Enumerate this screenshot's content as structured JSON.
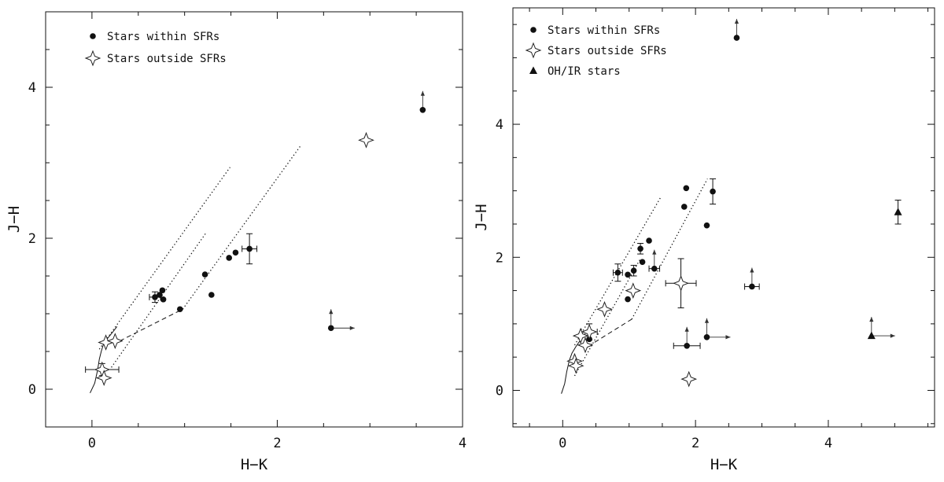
{
  "chart_data": [
    {
      "type": "scatter",
      "xlabel": "H−K",
      "ylabel": "J−H",
      "xlim": [
        -0.5,
        4.0
      ],
      "ylim": [
        -0.5,
        5.0
      ],
      "xticks": [
        0,
        2,
        4
      ],
      "yticks": [
        0,
        2,
        4
      ],
      "legend_position": "top-left",
      "legend": [
        {
          "symbol": "circle",
          "label": "Stars within SFRs"
        },
        {
          "symbol": "star4",
          "label": "Stars outside SFRs"
        }
      ],
      "series": [
        {
          "name": "Stars within SFRs",
          "symbol": "circle",
          "points": [
            {
              "x": 3.57,
              "y": 3.7,
              "up_arrow": true
            },
            {
              "x": 1.7,
              "y": 1.86,
              "xerr": 0.08,
              "yerr": 0.2
            },
            {
              "x": 1.55,
              "y": 1.81
            },
            {
              "x": 1.48,
              "y": 1.74
            },
            {
              "x": 1.22,
              "y": 1.52
            },
            {
              "x": 1.29,
              "y": 1.25
            },
            {
              "x": 0.95,
              "y": 1.06
            },
            {
              "x": 0.76,
              "y": 1.31
            },
            {
              "x": 0.73,
              "y": 1.25
            },
            {
              "x": 0.77,
              "y": 1.19
            },
            {
              "x": 0.68,
              "y": 1.22,
              "xerr": 0.06,
              "yerr": 0.07
            },
            {
              "x": 2.58,
              "y": 0.81,
              "up_arrow": true,
              "right_arrow": true
            }
          ]
        },
        {
          "name": "Stars outside SFRs",
          "symbol": "star4",
          "points": [
            {
              "x": 2.96,
              "y": 3.3
            },
            {
              "x": 0.15,
              "y": 0.62
            },
            {
              "x": 0.25,
              "y": 0.64
            },
            {
              "x": 0.11,
              "y": 0.26,
              "xerr": 0.18,
              "yerr": 0.08
            },
            {
              "x": 0.13,
              "y": 0.15
            }
          ]
        }
      ],
      "curves": [
        {
          "kind": "solid",
          "x": [
            -0.02,
            0.03,
            0.06,
            0.08,
            0.1,
            0.12,
            0.16,
            0.22,
            0.27
          ],
          "y": [
            -0.05,
            0.08,
            0.25,
            0.4,
            0.5,
            0.58,
            0.66,
            0.75,
            0.83
          ]
        },
        {
          "kind": "dashed",
          "x": [
            0.3,
            0.98
          ],
          "y": [
            0.64,
            1.06
          ]
        },
        {
          "kind": "dotted",
          "x": [
            0.08,
            1.49
          ],
          "y": [
            0.53,
            2.94
          ]
        },
        {
          "kind": "dotted",
          "x": [
            0.21,
            1.23
          ],
          "y": [
            0.29,
            2.07
          ]
        },
        {
          "kind": "dotted",
          "x": [
            0.98,
            2.26
          ],
          "y": [
            1.06,
            3.24
          ]
        }
      ]
    },
    {
      "type": "scatter",
      "xlabel": "H−K",
      "ylabel": "J−H",
      "xlim": [
        -0.75,
        5.6
      ],
      "ylim": [
        -0.55,
        5.75
      ],
      "xticks": [
        0,
        2,
        4
      ],
      "yticks": [
        0,
        2,
        4
      ],
      "legend_position": "top-left",
      "legend": [
        {
          "symbol": "circle",
          "label": "Stars within SFRs"
        },
        {
          "symbol": "star4",
          "label": "Stars outside SFRs"
        },
        {
          "symbol": "triangle",
          "label": "OH/IR stars"
        }
      ],
      "series": [
        {
          "name": "Stars within SFRs",
          "symbol": "circle",
          "points": [
            {
              "x": 2.62,
              "y": 5.3,
              "up_arrow": true
            },
            {
              "x": 1.86,
              "y": 3.04
            },
            {
              "x": 1.83,
              "y": 2.76
            },
            {
              "x": 2.26,
              "y": 2.99,
              "yerr": 0.19
            },
            {
              "x": 2.17,
              "y": 2.48
            },
            {
              "x": 1.3,
              "y": 2.25
            },
            {
              "x": 1.17,
              "y": 2.13,
              "yerr": 0.08
            },
            {
              "x": 1.2,
              "y": 1.93
            },
            {
              "x": 1.07,
              "y": 1.8,
              "yerr": 0.08
            },
            {
              "x": 0.98,
              "y": 1.74
            },
            {
              "x": 0.83,
              "y": 1.77,
              "xerr": 0.07,
              "yerr": 0.13
            },
            {
              "x": 1.38,
              "y": 1.83,
              "xerr": 0.08,
              "up_arrow": true
            },
            {
              "x": 0.98,
              "y": 1.37
            },
            {
              "x": 2.85,
              "y": 1.56,
              "xerr": 0.11,
              "up_arrow": true
            },
            {
              "x": 1.87,
              "y": 0.67,
              "xerr": 0.2,
              "up_arrow": true
            },
            {
              "x": 2.17,
              "y": 0.8,
              "up_arrow": true,
              "right_arrow": true
            },
            {
              "x": 0.4,
              "y": 0.77
            }
          ]
        },
        {
          "name": "Stars outside SFRs",
          "symbol": "star4",
          "points": [
            {
              "x": 1.78,
              "y": 1.61,
              "xerr": 0.23,
              "yerr": 0.37
            },
            {
              "x": 1.06,
              "y": 1.5
            },
            {
              "x": 0.63,
              "y": 1.22
            },
            {
              "x": 0.4,
              "y": 0.88,
              "xerr": 0.12,
              "yerr": 0.12
            },
            {
              "x": 0.27,
              "y": 0.82
            },
            {
              "x": 0.34,
              "y": 0.68
            },
            {
              "x": 0.18,
              "y": 0.44
            },
            {
              "x": 0.2,
              "y": 0.37
            },
            {
              "x": 1.9,
              "y": 0.17
            }
          ]
        },
        {
          "name": "OH/IR stars",
          "symbol": "triangle",
          "points": [
            {
              "x": 5.05,
              "y": 2.68,
              "yerr": 0.18
            },
            {
              "x": 4.65,
              "y": 0.82,
              "up_arrow": true,
              "right_arrow": true
            }
          ]
        }
      ],
      "curves": [
        {
          "kind": "solid",
          "x": [
            -0.02,
            0.03,
            0.06,
            0.1,
            0.14,
            0.2,
            0.27,
            0.34
          ],
          "y": [
            -0.05,
            0.1,
            0.28,
            0.45,
            0.56,
            0.66,
            0.76,
            0.85
          ]
        },
        {
          "kind": "dashed",
          "x": [
            0.38,
            1.04
          ],
          "y": [
            0.66,
            1.07
          ]
        },
        {
          "kind": "dotted",
          "x": [
            0.18,
            1.48
          ],
          "y": [
            0.68,
            2.91
          ]
        },
        {
          "kind": "dotted",
          "x": [
            0.18,
            1.17
          ],
          "y": [
            0.22,
            1.98
          ]
        },
        {
          "kind": "dotted",
          "x": [
            1.04,
            2.18
          ],
          "y": [
            1.07,
            3.18
          ]
        }
      ]
    }
  ]
}
